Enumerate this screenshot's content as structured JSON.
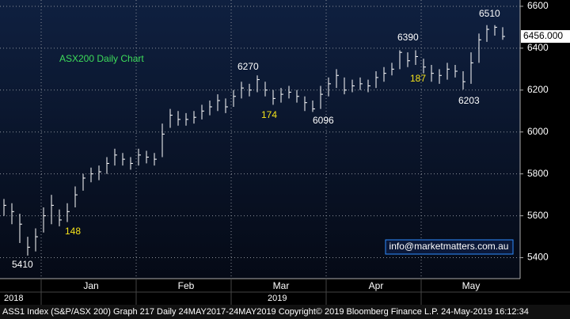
{
  "chart_data": {
    "type": "ohlc",
    "title": "ASX200 Daily Chart",
    "categories": [
      null,
      null,
      null,
      null,
      null,
      null,
      null,
      null,
      null,
      null,
      null,
      "Jan",
      null,
      null,
      null,
      null,
      null,
      null,
      null,
      null,
      null,
      null,
      null,
      "Feb",
      null,
      null,
      null,
      null,
      null,
      null,
      null,
      null,
      null,
      null,
      null,
      "Mar",
      null,
      null,
      null,
      null,
      null,
      null,
      null,
      null,
      null,
      null,
      null,
      "Apr",
      null,
      null,
      null,
      null,
      null,
      null,
      null,
      null,
      null,
      null,
      null,
      "May",
      null,
      null,
      null,
      null
    ],
    "close": [
      5650,
      5620,
      5560,
      5450,
      5500,
      5600,
      5650,
      5580,
      5620,
      5700,
      5780,
      5800,
      5810,
      5850,
      5890,
      5870,
      5850,
      5890,
      5880,
      5870,
      5990,
      6080,
      6060,
      6060,
      6070,
      6100,
      6120,
      6150,
      6120,
      6170,
      6210,
      6200,
      6250,
      6200,
      6160,
      6180,
      6190,
      6170,
      6140,
      6110,
      6180,
      6230,
      6270,
      6200,
      6220,
      6230,
      6220,
      6260,
      6280,
      6300,
      6380,
      6340,
      6360,
      6310,
      6280,
      6270,
      6300,
      6290,
      6240,
      6330,
      6440,
      6490,
      6500,
      6456
    ],
    "high": [
      5680,
      5660,
      5610,
      5500,
      5540,
      5640,
      5700,
      5630,
      5660,
      5740,
      5800,
      5830,
      5840,
      5880,
      5920,
      5900,
      5880,
      5920,
      5910,
      5900,
      6040,
      6110,
      6100,
      6090,
      6100,
      6130,
      6150,
      6180,
      6160,
      6200,
      6240,
      6230,
      6270,
      6240,
      6200,
      6210,
      6220,
      6200,
      6170,
      6150,
      6220,
      6260,
      6300,
      6260,
      6250,
      6260,
      6250,
      6290,
      6310,
      6330,
      6390,
      6380,
      6390,
      6350,
      6320,
      6300,
      6330,
      6320,
      6290,
      6380,
      6470,
      6510,
      6510,
      6500
    ],
    "low": [
      5600,
      5560,
      5470,
      5410,
      5430,
      5520,
      5560,
      5550,
      5570,
      5640,
      5720,
      5760,
      5770,
      5800,
      5840,
      5840,
      5820,
      5840,
      5850,
      5840,
      5880,
      6020,
      6030,
      6030,
      6040,
      6060,
      6080,
      6100,
      6090,
      6120,
      6160,
      6170,
      6190,
      6170,
      6130,
      6140,
      6160,
      6140,
      6100,
      6096,
      6110,
      6170,
      6210,
      6180,
      6190,
      6200,
      6190,
      6210,
      6240,
      6270,
      6300,
      6310,
      6320,
      6280,
      6240,
      6230,
      6250,
      6260,
      6203,
      6230,
      6330,
      6430,
      6460,
      6440
    ],
    "color": "#ffffff",
    "ylim": [
      5300,
      6630
    ],
    "yticks": [
      5400,
      5600,
      5800,
      6000,
      6200,
      6400,
      6600
    ],
    "grid": true,
    "last_price": {
      "value": 6456,
      "label": "6456.000"
    },
    "annotations": [
      "6510",
      "6390",
      "6270",
      "6096",
      "5410",
      "6203",
      "148",
      "174",
      "187"
    ],
    "year_labels": [
      "2018",
      "2019"
    ]
  },
  "watermark": "info@marketmatters.com.au",
  "footer": "ASS1 Index (S&P/ASX 200) Graph 217  Daily 24MAY2017-24MAY2019   Copyright© 2019 Bloomberg Finance L.P.     24-May-2019 16:12:34"
}
